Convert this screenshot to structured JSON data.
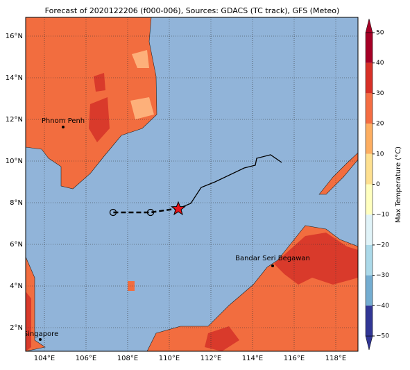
{
  "title": "Forecast of 2020122206 (f000-006), Sources: GDACS (TC track), GFS (Meteo)",
  "lon_labels": [
    "104°E",
    "106°E",
    "108°E",
    "110°E",
    "112°E",
    "114°E",
    "116°E",
    "118°E"
  ],
  "lat_labels": [
    "16°N",
    "14°N",
    "12°N",
    "10°N",
    "8°N",
    "6°N",
    "4°N",
    "2°N"
  ],
  "cities": [
    "Phnom Penh",
    "Bandar Seri Begawan",
    "Singapore"
  ],
  "colorbar": {
    "label": "Max Temperature (°C)",
    "ticks": [
      "50",
      "40",
      "30",
      "20",
      "10",
      "0",
      "−10",
      "−20",
      "−30",
      "−40",
      "−50"
    ]
  }
}
